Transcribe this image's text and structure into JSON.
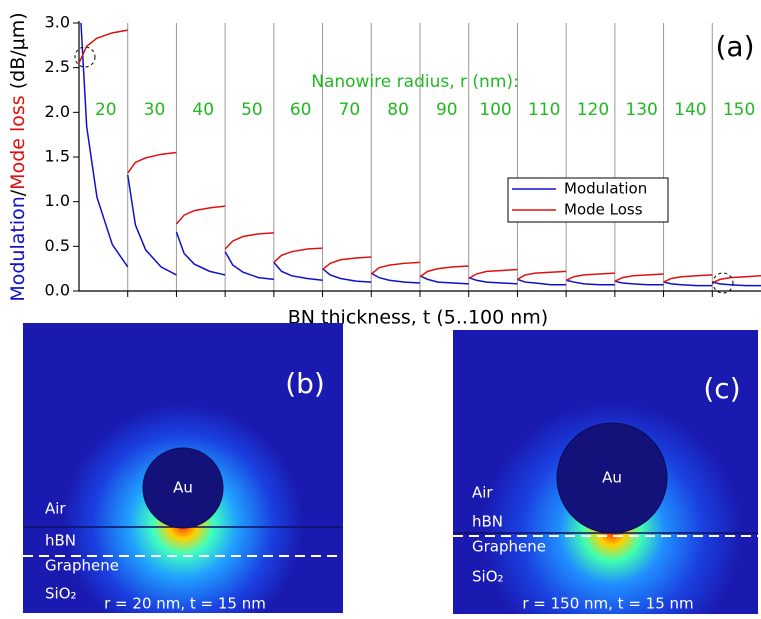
{
  "chart_data": {
    "type": "line",
    "title": "(a)",
    "ylabel": [
      {
        "text": "Modulation",
        "color": "#1010cc"
      },
      {
        "text": "/",
        "color": "#000000"
      },
      {
        "text": "Mode loss",
        "color": "#e01010"
      },
      {
        "text": " (dB/μm)",
        "color": "#000000"
      }
    ],
    "xlabel": "BN thickness, t (5..100 nm)",
    "annotation": "Nanowire radius, r (nm):",
    "annotation_color": "#22b822",
    "categories": [
      "20",
      "30",
      "40",
      "50",
      "60",
      "70",
      "80",
      "90",
      "100",
      "110",
      "120",
      "130",
      "140",
      "150"
    ],
    "x": [
      5,
      20,
      40,
      70,
      100
    ],
    "xlim": [
      5,
      100
    ],
    "ylim": [
      0,
      3
    ],
    "yticks": [
      {
        "value": 0,
        "label": "0.0"
      },
      0.5,
      {
        "value": 1,
        "label": "1.0"
      },
      1.5,
      {
        "value": 2,
        "label": "2.0"
      },
      2.5,
      {
        "value": 3,
        "label": "3.0"
      }
    ],
    "legend": "center right",
    "series": [
      {
        "name": "Modulation",
        "color": "#1010cc",
        "values": [
          [
            3.4,
            1.84,
            1.05,
            0.52,
            0.27
          ],
          [
            1.3,
            0.74,
            0.46,
            0.27,
            0.18
          ],
          [
            0.66,
            0.42,
            0.3,
            0.22,
            0.18
          ],
          [
            0.44,
            0.29,
            0.21,
            0.15,
            0.13
          ],
          [
            0.32,
            0.22,
            0.17,
            0.14,
            0.12
          ],
          [
            0.25,
            0.18,
            0.14,
            0.11,
            0.1
          ],
          [
            0.2,
            0.15,
            0.12,
            0.1,
            0.09
          ],
          [
            0.17,
            0.13,
            0.1,
            0.09,
            0.08
          ],
          [
            0.15,
            0.12,
            0.1,
            0.09,
            0.08
          ],
          [
            0.13,
            0.1,
            0.09,
            0.07,
            0.07
          ],
          [
            0.12,
            0.1,
            0.08,
            0.07,
            0.07
          ],
          [
            0.11,
            0.09,
            0.08,
            0.07,
            0.07
          ],
          [
            0.1,
            0.08,
            0.07,
            0.06,
            0.06
          ],
          [
            0.1,
            0.08,
            0.07,
            0.06,
            0.06
          ]
        ]
      },
      {
        "name": "Mode Loss",
        "color": "#e01010",
        "values": [
          [
            2.55,
            2.74,
            2.83,
            2.89,
            2.92
          ],
          [
            1.32,
            1.44,
            1.49,
            1.53,
            1.55
          ],
          [
            0.75,
            0.85,
            0.9,
            0.93,
            0.95
          ],
          [
            0.47,
            0.56,
            0.61,
            0.64,
            0.65
          ],
          [
            0.32,
            0.4,
            0.44,
            0.47,
            0.48
          ],
          [
            0.24,
            0.31,
            0.35,
            0.37,
            0.38
          ],
          [
            0.19,
            0.26,
            0.29,
            0.31,
            0.32
          ],
          [
            0.16,
            0.22,
            0.25,
            0.27,
            0.28
          ],
          [
            0.14,
            0.19,
            0.22,
            0.23,
            0.24
          ],
          [
            0.13,
            0.18,
            0.2,
            0.21,
            0.22
          ],
          [
            0.12,
            0.16,
            0.18,
            0.19,
            0.2
          ],
          [
            0.11,
            0.15,
            0.17,
            0.18,
            0.19
          ],
          [
            0.1,
            0.14,
            0.16,
            0.17,
            0.18
          ],
          [
            0.09,
            0.13,
            0.15,
            0.16,
            0.17
          ]
        ]
      }
    ]
  },
  "figures": [
    {
      "label": "(b)",
      "particle": "Au",
      "layers": [
        "Air",
        "hBN",
        "Graphene",
        "SiO₂"
      ],
      "caption": "r = 20 nm, t = 15 nm"
    },
    {
      "label": "(c)",
      "particle": "Au",
      "layers": [
        "Air",
        "hBN",
        "Graphene",
        "SiO₂"
      ],
      "caption": "r = 150 nm, t = 15 nm"
    }
  ]
}
